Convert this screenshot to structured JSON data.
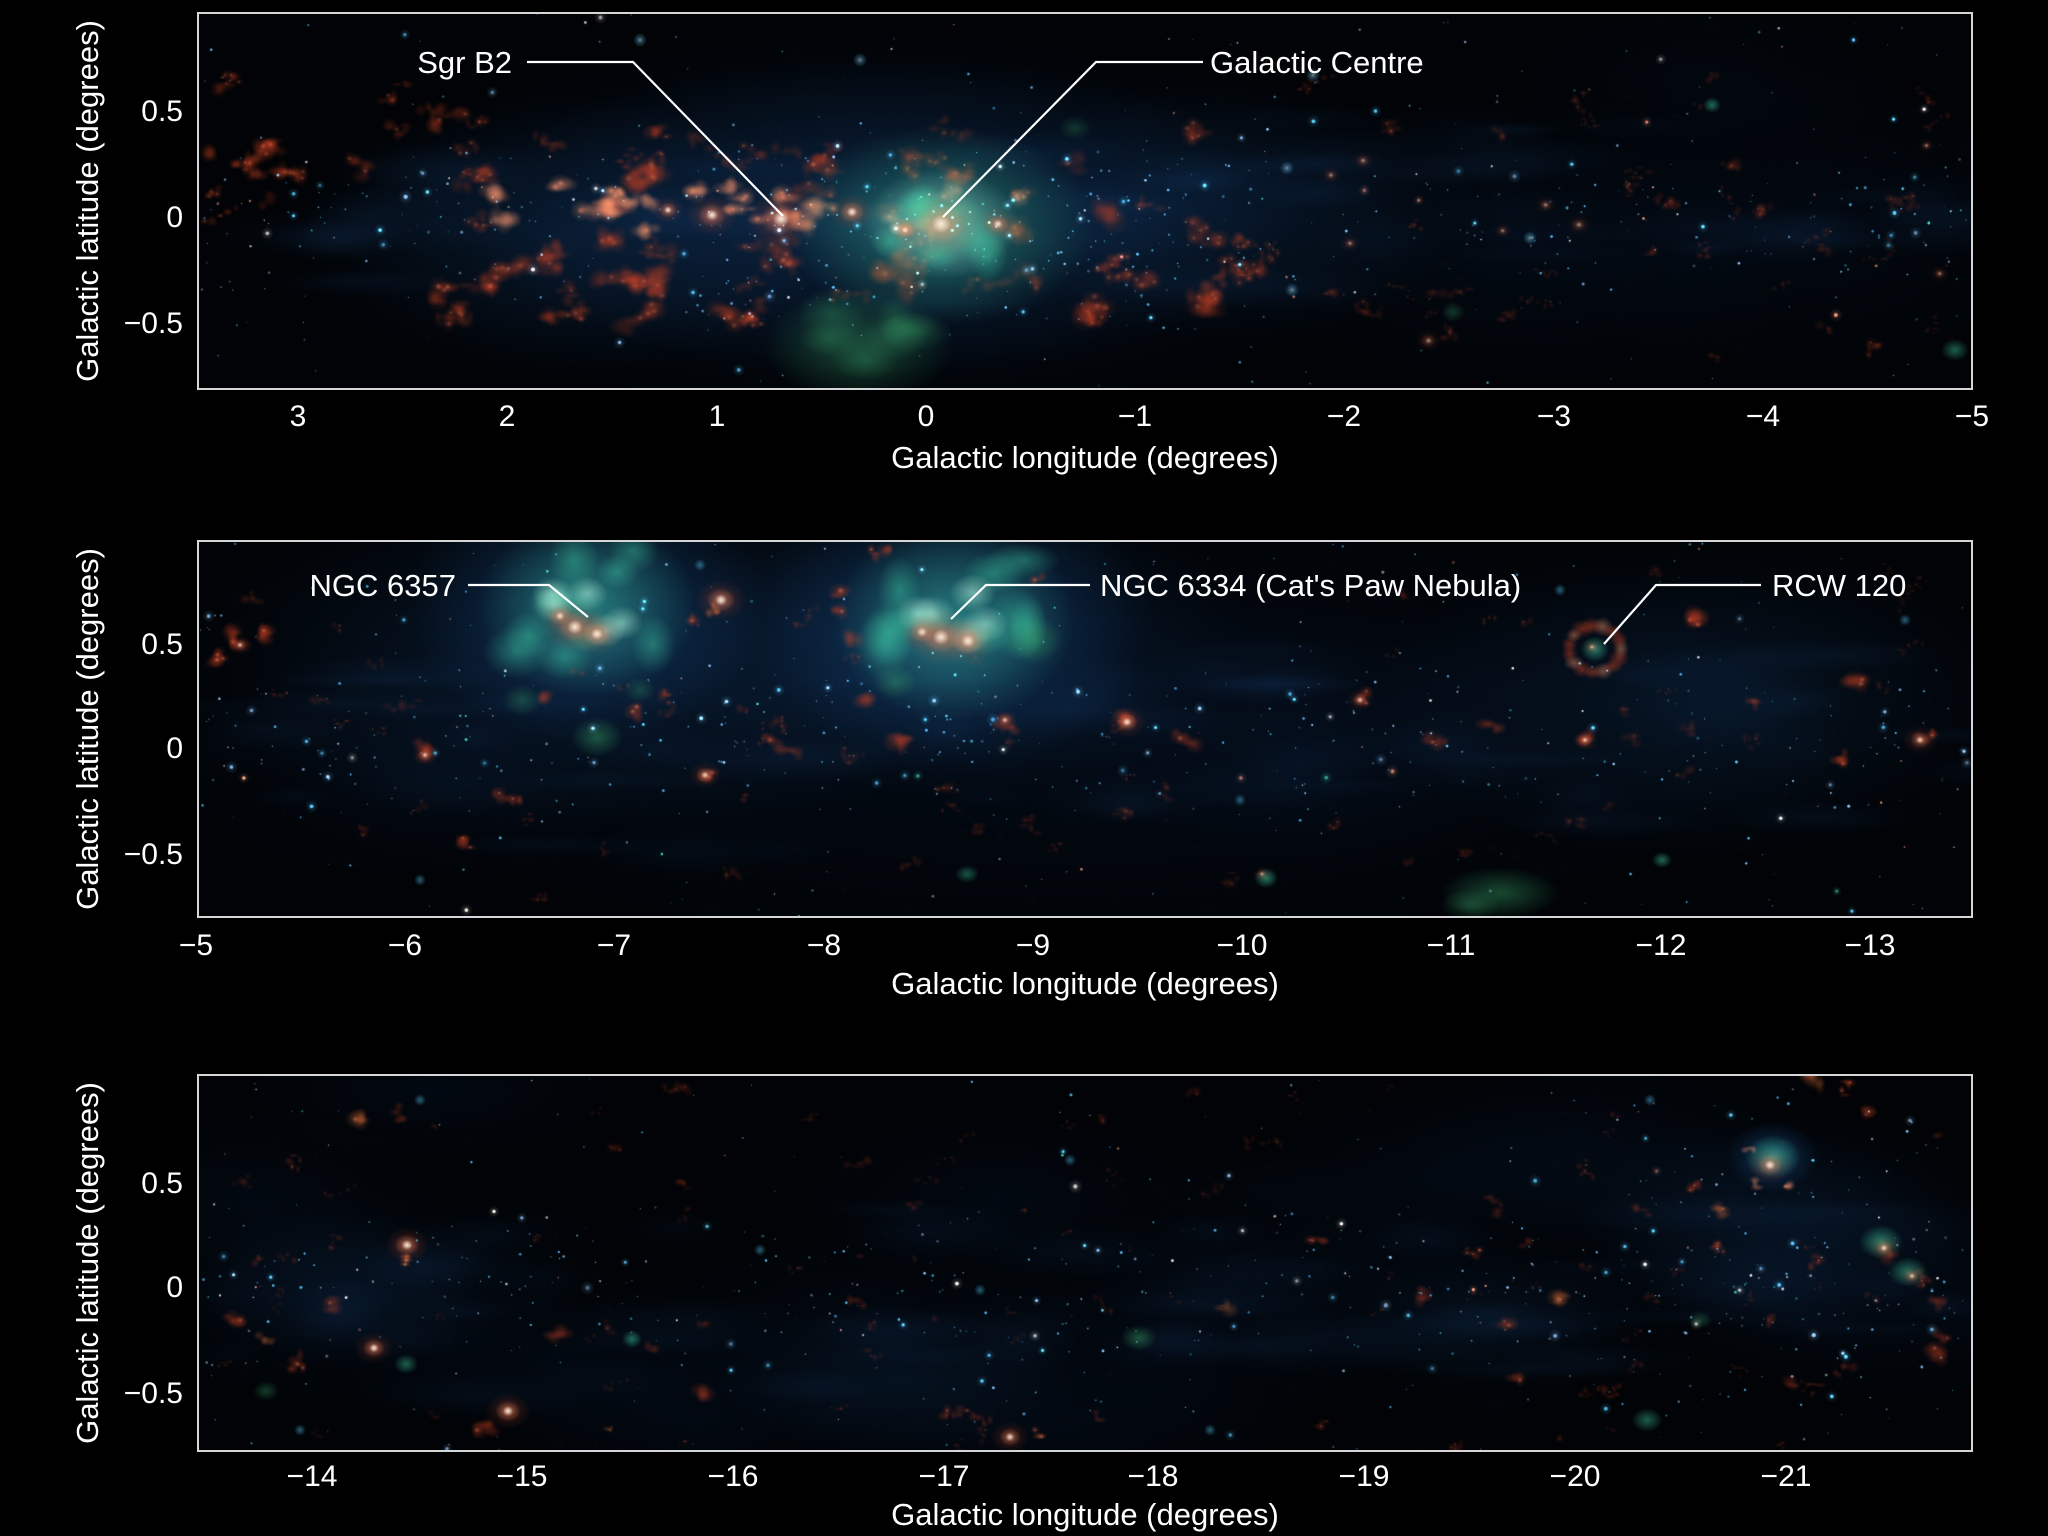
{
  "figure": {
    "axis": {
      "x_label": "Galactic longitude (degrees)",
      "y_label": "Galactic latitude (degrees)"
    }
  },
  "chart_data": {
    "type": "heatmap",
    "description": "Three-panel annotated false-colour mosaic of the Galactic Plane: cold dust filaments in red/orange, warm nebulae in teal-green, star field and diffuse emission in blue, on black sky.",
    "panels": [
      {
        "id": "panel-1",
        "x_tick_labels": [
          "3",
          "2",
          "1",
          "0",
          "−1",
          "−2",
          "−3",
          "−4",
          "−5"
        ],
        "x_tick_values": [
          3,
          2,
          1,
          0,
          -1,
          -2,
          -3,
          -4,
          -5
        ],
        "y_tick_labels": [
          "0.5",
          "0",
          "−0.5"
        ],
        "y_tick_values": [
          0.5,
          0,
          -0.5
        ],
        "x_range": [
          3.5,
          -5.0
        ],
        "y_range": [
          1.0,
          -0.8
        ],
        "annotations": [
          {
            "label": "Sgr B2",
            "longitude_deg": 0.7,
            "latitude_deg": 0.0
          },
          {
            "label": "Galactic Centre",
            "longitude_deg": 0.0,
            "latitude_deg": 0.0
          }
        ]
      },
      {
        "id": "panel-2",
        "x_tick_labels": [
          "−5",
          "−6",
          "−7",
          "−8",
          "−9",
          "−10",
          "−11",
          "−12",
          "−13"
        ],
        "x_tick_values": [
          -5,
          -6,
          -7,
          -8,
          -9,
          -10,
          -11,
          -12,
          -13
        ],
        "y_tick_labels": [
          "0.5",
          "0",
          "−0.5"
        ],
        "y_tick_values": [
          0.5,
          0,
          -0.5
        ],
        "x_range": [
          -5.0,
          -13.5
        ],
        "y_range": [
          1.0,
          -0.8
        ],
        "annotations": [
          {
            "label": "NGC 6357",
            "longitude_deg": -6.9,
            "latitude_deg": 0.7
          },
          {
            "label": "NGC 6334 (Cat's Paw Nebula)",
            "longitude_deg": -8.7,
            "latitude_deg": 0.6
          },
          {
            "label": "RCW 120",
            "longitude_deg": -11.8,
            "latitude_deg": 0.5
          }
        ]
      },
      {
        "id": "panel-3",
        "x_tick_labels": [
          "−14",
          "−15",
          "−16",
          "−17",
          "−18",
          "−19",
          "−20",
          "−21"
        ],
        "x_tick_values": [
          -14,
          -15,
          -16,
          -17,
          -18,
          -19,
          -20,
          -21
        ],
        "y_tick_labels": [
          "0.5",
          "0",
          "−0.5"
        ],
        "y_tick_values": [
          0.5,
          0,
          -0.5
        ],
        "x_range": [
          -13.5,
          -22.0
        ],
        "y_range": [
          1.0,
          -0.8
        ],
        "annotations": []
      }
    ],
    "palette": {
      "background": "#000000",
      "frame": "#d6d6d6",
      "text": "#ffffff",
      "cold_dust_red": "#e1502a",
      "warm_dust_salmon": "#ff966e",
      "nebula_teal": "#46e6b4",
      "nebula_green": "#3caa6e",
      "diffuse_blue": "#1c5696",
      "star_cyan": "#50c8ff",
      "hot_core_white": "#fff6e6"
    }
  }
}
